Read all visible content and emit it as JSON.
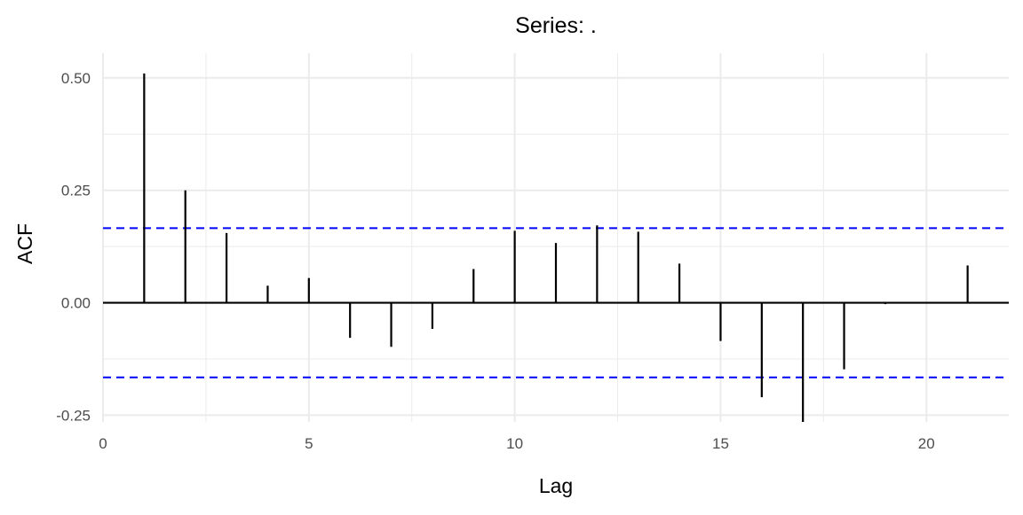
{
  "chart_data": {
    "type": "bar",
    "title": "Series: .",
    "xlabel": "Lag",
    "ylabel": "ACF",
    "xlim": [
      0,
      22
    ],
    "ylim": [
      -0.265,
      0.555
    ],
    "x_ticks": [
      0,
      5,
      10,
      15,
      20
    ],
    "x_tick_labels": [
      "0",
      "5",
      "10",
      "15",
      "20"
    ],
    "y_ticks": [
      -0.25,
      0,
      0.25,
      0.5
    ],
    "y_tick_labels": [
      "-0.25",
      "0.00",
      "0.25",
      "0.50"
    ],
    "y_minor_ticks": [
      -0.125,
      0.125,
      0.375
    ],
    "x_minor_ticks": [
      2.5,
      7.5,
      12.5,
      17.5
    ],
    "grid": true,
    "legend": "none",
    "confidence_bounds": [
      0.166,
      -0.166
    ],
    "colors": {
      "spike": "#000000",
      "bounds": "#0000ff",
      "grid": "#ebebeb",
      "zero_line": "#000000"
    },
    "series": [
      {
        "lags": [
          1,
          2,
          3,
          4,
          5,
          6,
          7,
          8,
          9,
          10,
          11,
          12,
          13,
          14,
          15,
          16,
          17,
          18,
          19,
          20,
          21
        ],
        "values": [
          0.51,
          0.25,
          0.155,
          0.038,
          0.055,
          -0.078,
          -0.098,
          -0.058,
          0.075,
          0.16,
          0.133,
          0.172,
          0.158,
          0.087,
          -0.085,
          -0.21,
          -0.265,
          -0.148,
          -0.003,
          0.0,
          0.083
        ]
      }
    ]
  }
}
